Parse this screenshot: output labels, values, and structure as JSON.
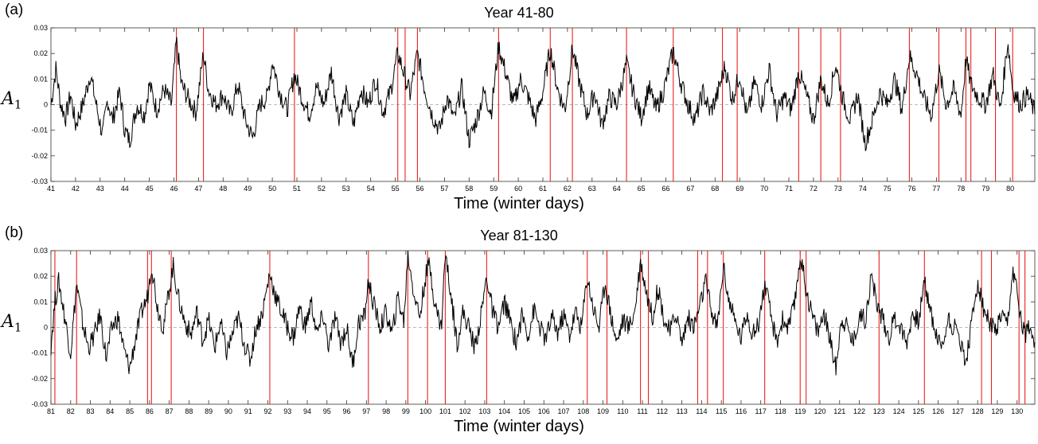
{
  "chart_data": [
    {
      "type": "line",
      "panel_label": "(a)",
      "title": "Year 41-80",
      "xlabel": "Time (winter days)",
      "ylabel": "A",
      "ylabel_sub": "1",
      "xlim": [
        41,
        81
      ],
      "ylim": [
        -0.03,
        0.03
      ],
      "yticks": [
        -0.03,
        -0.02,
        -0.01,
        0,
        0.01,
        0.02,
        0.03
      ],
      "ytick_labels": [
        "-0.03",
        "-0.02",
        "-0.01",
        "0",
        "0.01",
        "0.02",
        "0.03"
      ],
      "xticks": [
        41,
        42,
        43,
        44,
        45,
        46,
        47,
        48,
        49,
        50,
        51,
        52,
        53,
        54,
        55,
        56,
        57,
        58,
        59,
        60,
        61,
        62,
        63,
        64,
        65,
        66,
        67,
        68,
        69,
        70,
        71,
        72,
        73,
        74,
        75,
        76,
        77,
        78,
        79,
        80
      ],
      "zero_line": true,
      "line_color": "#000000",
      "event_color": "#e8231f",
      "events": [
        46.1,
        47.2,
        50.9,
        55.1,
        55.4,
        55.9,
        59.2,
        61.3,
        62.2,
        64.4,
        66.3,
        68.3,
        68.9,
        71.4,
        72.3,
        73.1,
        75.9,
        77.1,
        78.2,
        78.4,
        79.4,
        80.1
      ],
      "series": [
        {
          "x": [
            41.0,
            41.2,
            41.4,
            41.6,
            41.8,
            42.0,
            42.3,
            42.6,
            42.9,
            43.1,
            43.3,
            43.5,
            43.8,
            44.0,
            44.2,
            44.5,
            44.8,
            45.0,
            45.3,
            45.6,
            45.9,
            46.1,
            46.3,
            46.6,
            46.9,
            47.2,
            47.4,
            47.7,
            48.0,
            48.3,
            48.6,
            48.9,
            49.2,
            49.5,
            49.8,
            50.0,
            50.3,
            50.6,
            50.9,
            51.2,
            51.5,
            51.8,
            52.1,
            52.4,
            52.7,
            53.0,
            53.3,
            53.6,
            53.9,
            54.2,
            54.5,
            54.8,
            55.1,
            55.3,
            55.6,
            55.9,
            56.2,
            56.5,
            56.8,
            57.1,
            57.4,
            57.7,
            58.0,
            58.3,
            58.6,
            58.9,
            59.2,
            59.5,
            59.8,
            60.1,
            60.4,
            60.7,
            61.0,
            61.3,
            61.6,
            61.9,
            62.2,
            62.5,
            62.8,
            63.1,
            63.4,
            63.7,
            64.0,
            64.4,
            64.7,
            65.0,
            65.3,
            65.6,
            65.9,
            66.3,
            66.6,
            66.9,
            67.2,
            67.5,
            67.8,
            68.1,
            68.4,
            68.7,
            69.0,
            69.3,
            69.6,
            69.9,
            70.2,
            70.5,
            70.8,
            71.1,
            71.4,
            71.7,
            72.0,
            72.3,
            72.6,
            72.9,
            73.2,
            73.5,
            73.8,
            74.1,
            74.4,
            74.7,
            75.0,
            75.3,
            75.6,
            75.9,
            76.2,
            76.5,
            76.8,
            77.1,
            77.4,
            77.7,
            78.0,
            78.2,
            78.4,
            78.7,
            79.0,
            79.3,
            79.6,
            79.9,
            80.1,
            80.4,
            80.7,
            81.0
          ],
          "y": [
            0.0,
            0.014,
            0.0,
            -0.005,
            0.004,
            -0.008,
            0.0,
            0.012,
            -0.003,
            -0.012,
            0.002,
            -0.006,
            0.005,
            -0.01,
            -0.014,
            0.0,
            -0.004,
            0.008,
            -0.002,
            0.006,
            0.0,
            0.025,
            0.008,
            0.002,
            -0.003,
            0.02,
            0.006,
            0.0,
            0.004,
            -0.004,
            0.008,
            -0.006,
            -0.013,
            0.0,
            0.003,
            0.017,
            0.005,
            -0.002,
            0.012,
            0.003,
            -0.004,
            0.007,
            0.0,
            0.013,
            -0.005,
            0.004,
            -0.008,
            0.006,
            0.0,
            0.01,
            -0.003,
            0.005,
            0.02,
            0.014,
            0.004,
            0.02,
            0.006,
            -0.004,
            -0.01,
            0.003,
            -0.006,
            0.007,
            -0.014,
            -0.006,
            0.005,
            -0.003,
            0.023,
            0.012,
            0.0,
            0.01,
            0.003,
            -0.006,
            0.005,
            0.022,
            0.006,
            -0.002,
            0.022,
            0.008,
            -0.004,
            0.005,
            -0.008,
            0.003,
            0.0,
            0.016,
            0.004,
            -0.005,
            0.007,
            -0.002,
            0.005,
            0.021,
            0.009,
            0.0,
            -0.006,
            0.005,
            -0.003,
            0.004,
            0.015,
            0.002,
            0.012,
            -0.005,
            0.009,
            0.0,
            0.014,
            -0.004,
            0.003,
            -0.002,
            0.013,
            0.004,
            -0.006,
            0.01,
            0.0,
            0.016,
            0.002,
            -0.006,
            0.004,
            -0.015,
            -0.006,
            0.005,
            0.0,
            0.01,
            -0.002,
            0.019,
            0.012,
            0.002,
            -0.004,
            0.013,
            0.0,
            0.006,
            -0.004,
            0.018,
            0.008,
            0.003,
            0.0,
            0.012,
            -0.002,
            0.025,
            0.006,
            0.0,
            0.004,
            -0.003
          ]
        }
      ]
    },
    {
      "type": "line",
      "panel_label": "(b)",
      "title": "Year 81-130",
      "xlabel": "Time (winter days)",
      "ylabel": "A",
      "ylabel_sub": "1",
      "xlim": [
        81,
        130.9
      ],
      "ylim": [
        -0.03,
        0.03
      ],
      "yticks": [
        -0.03,
        -0.02,
        -0.01,
        0,
        0.01,
        0.02,
        0.03
      ],
      "ytick_labels": [
        "-0.03",
        "-0.02",
        "-0.01",
        "0",
        "0.01",
        "0.02",
        "0.03"
      ],
      "xticks": [
        81,
        82,
        83,
        84,
        85,
        86,
        87,
        88,
        89,
        90,
        91,
        92,
        93,
        94,
        95,
        96,
        97,
        98,
        99,
        100,
        101,
        102,
        103,
        104,
        105,
        106,
        107,
        108,
        109,
        110,
        111,
        112,
        113,
        114,
        115,
        116,
        117,
        118,
        119,
        120,
        121,
        122,
        123,
        124,
        125,
        126,
        127,
        128,
        129,
        130
      ],
      "zero_line": true,
      "line_color": "#000000",
      "event_color": "#e8231f",
      "events": [
        81.2,
        82.3,
        85.9,
        86.1,
        87.1,
        92.1,
        97.1,
        99.1,
        100.1,
        101.0,
        103.1,
        108.2,
        109.2,
        110.9,
        111.3,
        113.8,
        114.3,
        115.1,
        117.2,
        119.0,
        119.3,
        123.0,
        125.3,
        128.2,
        128.7,
        130.1,
        130.4
      ],
      "series": [
        {
          "x": [
            81.0,
            81.2,
            81.4,
            81.7,
            82.0,
            82.3,
            82.6,
            82.9,
            83.2,
            83.5,
            83.8,
            84.1,
            84.4,
            84.7,
            85.0,
            85.3,
            85.6,
            85.9,
            86.1,
            86.4,
            86.7,
            87.0,
            87.2,
            87.5,
            87.8,
            88.1,
            88.4,
            88.7,
            89.0,
            89.3,
            89.6,
            89.9,
            90.2,
            90.5,
            90.8,
            91.1,
            91.4,
            91.7,
            92.1,
            92.4,
            92.7,
            93.0,
            93.3,
            93.6,
            93.9,
            94.2,
            94.5,
            94.8,
            95.1,
            95.4,
            95.7,
            96.0,
            96.3,
            96.6,
            96.9,
            97.1,
            97.4,
            97.7,
            98.0,
            98.3,
            98.6,
            98.9,
            99.1,
            99.4,
            99.7,
            100.0,
            100.2,
            100.5,
            100.8,
            101.0,
            101.3,
            101.6,
            101.9,
            102.2,
            102.5,
            102.8,
            103.1,
            103.4,
            103.7,
            104.0,
            104.3,
            104.6,
            104.9,
            105.2,
            105.5,
            105.8,
            106.1,
            106.4,
            106.7,
            107.0,
            107.3,
            107.6,
            107.9,
            108.2,
            108.5,
            108.8,
            109.1,
            109.4,
            109.7,
            110.0,
            110.3,
            110.6,
            110.9,
            111.2,
            111.5,
            111.8,
            112.1,
            112.4,
            112.7,
            113.0,
            113.3,
            113.6,
            113.9,
            114.2,
            114.5,
            114.8,
            115.1,
            115.4,
            115.7,
            116.0,
            116.3,
            116.6,
            116.9,
            117.2,
            117.5,
            117.8,
            118.1,
            118.4,
            118.7,
            119.0,
            119.3,
            119.6,
            119.9,
            120.2,
            120.5,
            120.8,
            121.1,
            121.4,
            121.7,
            122.0,
            122.3,
            122.6,
            122.9,
            123.2,
            123.5,
            123.8,
            124.1,
            124.4,
            124.7,
            125.0,
            125.3,
            125.6,
            125.9,
            126.2,
            126.5,
            126.8,
            127.1,
            127.4,
            127.7,
            128.0,
            128.3,
            128.6,
            128.9,
            129.2,
            129.5,
            129.8,
            130.1,
            130.4,
            130.7,
            130.9
          ],
          "y": [
            -0.007,
            0.01,
            0.018,
            0.004,
            -0.01,
            0.017,
            0.002,
            -0.008,
            -0.003,
            0.005,
            -0.012,
            0.0,
            0.004,
            -0.009,
            -0.016,
            -0.004,
            0.006,
            0.012,
            0.025,
            0.008,
            0.0,
            0.015,
            0.024,
            0.01,
            0.002,
            -0.003,
            0.006,
            -0.005,
            0.003,
            -0.008,
            0.002,
            -0.01,
            -0.003,
            0.004,
            -0.006,
            -0.013,
            0.0,
            0.005,
            0.021,
            0.012,
            0.006,
            0.0,
            -0.004,
            0.008,
            0.0,
            0.01,
            -0.003,
            0.005,
            -0.008,
            0.004,
            -0.006,
            0.0,
            -0.015,
            0.002,
            0.004,
            0.018,
            0.008,
            0.0,
            0.006,
            -0.003,
            0.012,
            0.002,
            0.029,
            0.014,
            0.004,
            0.02,
            0.025,
            0.008,
            0.0,
            0.029,
            0.012,
            -0.006,
            0.006,
            0.0,
            -0.008,
            0.004,
            0.02,
            0.006,
            0.0,
            0.01,
            0.002,
            -0.006,
            0.005,
            -0.003,
            0.007,
            0.0,
            -0.005,
            0.004,
            -0.002,
            0.005,
            -0.003,
            0.006,
            0.0,
            0.02,
            0.008,
            0.0,
            0.018,
            0.005,
            -0.006,
            0.003,
            0.0,
            0.006,
            0.026,
            0.014,
            0.004,
            0.016,
            0.003,
            -0.002,
            0.006,
            -0.006,
            0.004,
            0.0,
            0.008,
            0.018,
            0.006,
            0.0,
            0.024,
            0.01,
            0.002,
            -0.004,
            0.006,
            -0.003,
            0.002,
            0.017,
            0.005,
            -0.006,
            0.003,
            0.0,
            0.008,
            0.028,
            0.015,
            0.005,
            -0.002,
            0.006,
            -0.004,
            -0.016,
            0.004,
            0.0,
            -0.006,
            0.005,
            0.003,
            0.02,
            0.009,
            0.003,
            -0.004,
            0.004,
            0.0,
            -0.006,
            0.006,
            0.002,
            0.018,
            0.007,
            -0.003,
            -0.008,
            0.004,
            0.0,
            -0.004,
            -0.014,
            0.002,
            0.018,
            0.007,
            0.002,
            -0.002,
            0.004,
            0.0,
            0.022,
            0.008,
            -0.003,
            0.002,
            -0.007
          ]
        }
      ]
    }
  ]
}
